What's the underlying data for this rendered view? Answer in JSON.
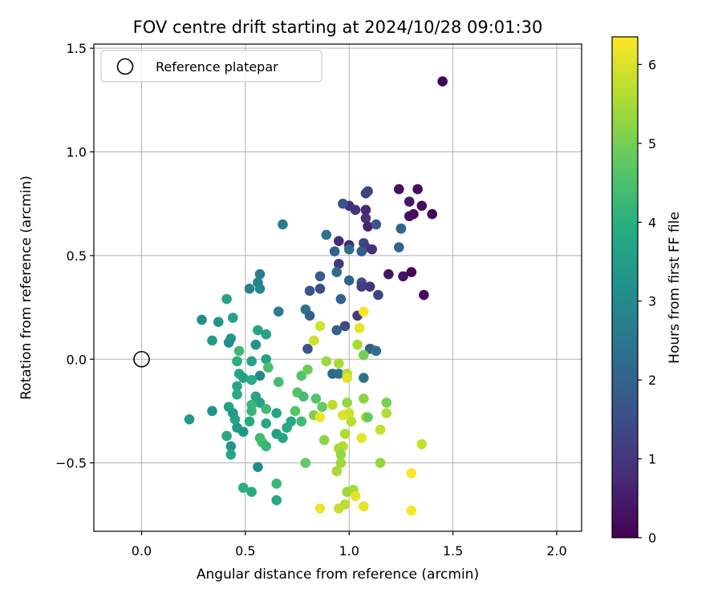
{
  "chart_data": {
    "type": "scatter",
    "title": "FOV centre drift starting at 2024/10/28 09:01:30",
    "xlabel": "Angular distance from reference (arcmin)",
    "ylabel": "Rotation from reference (arcmin)",
    "colorbar_label": "Hours from first FF file",
    "xlim": [
      -0.23,
      2.12
    ],
    "ylim": [
      -0.83,
      1.52
    ],
    "color_range": [
      0,
      6.35
    ],
    "x_ticks": [
      "0.0",
      "0.5",
      "1.0",
      "1.5",
      "2.0"
    ],
    "y_ticks": [
      "−0.5",
      "0.0",
      "0.5",
      "1.0",
      "1.5"
    ],
    "colorbar_ticks": [
      "0",
      "1",
      "2",
      "3",
      "4",
      "5",
      "6"
    ],
    "grid": true,
    "colormap": "viridis",
    "legend": {
      "placement": "top-left",
      "entries": [
        {
          "label": "Reference platepar",
          "marker": "open-circle"
        }
      ]
    },
    "reference_point": {
      "x": 0.0,
      "y": 0.0
    },
    "points": [
      {
        "x": 1.45,
        "y": 1.34,
        "c": 0.1
      },
      {
        "x": 1.24,
        "y": 0.82,
        "c": 0.3
      },
      {
        "x": 1.33,
        "y": 0.82,
        "c": 0.2
      },
      {
        "x": 1.29,
        "y": 0.76,
        "c": 0.4
      },
      {
        "x": 1.35,
        "y": 0.74,
        "c": 0.2
      },
      {
        "x": 1.29,
        "y": 0.69,
        "c": 0.3
      },
      {
        "x": 1.31,
        "y": 0.7,
        "c": 0.2
      },
      {
        "x": 1.4,
        "y": 0.7,
        "c": 0.1
      },
      {
        "x": 1.25,
        "y": 0.63,
        "c": 0.5
      },
      {
        "x": 1.26,
        "y": 0.4,
        "c": 0.3
      },
      {
        "x": 1.3,
        "y": 0.42,
        "c": 0.1
      },
      {
        "x": 1.36,
        "y": 0.31,
        "c": 0.2
      },
      {
        "x": 1.19,
        "y": 0.41,
        "c": 0.4
      },
      {
        "x": 1.08,
        "y": 0.8,
        "c": 1.2
      },
      {
        "x": 1.09,
        "y": 0.81,
        "c": 1.3
      },
      {
        "x": 1.0,
        "y": 0.74,
        "c": 0.8
      },
      {
        "x": 1.03,
        "y": 0.72,
        "c": 1.0
      },
      {
        "x": 1.08,
        "y": 0.72,
        "c": 0.7
      },
      {
        "x": 1.08,
        "y": 0.68,
        "c": 0.9
      },
      {
        "x": 1.09,
        "y": 0.64,
        "c": 0.6
      },
      {
        "x": 0.97,
        "y": 0.75,
        "c": 1.6
      },
      {
        "x": 1.13,
        "y": 0.65,
        "c": 1.7
      },
      {
        "x": 1.25,
        "y": 0.63,
        "c": 2.1
      },
      {
        "x": 1.24,
        "y": 0.54,
        "c": 2.0
      },
      {
        "x": 0.95,
        "y": 0.57,
        "c": 0.8
      },
      {
        "x": 1.0,
        "y": 0.55,
        "c": 0.7
      },
      {
        "x": 1.07,
        "y": 0.56,
        "c": 1.4
      },
      {
        "x": 1.08,
        "y": 0.54,
        "c": 1.2
      },
      {
        "x": 1.11,
        "y": 0.53,
        "c": 0.9
      },
      {
        "x": 1.06,
        "y": 0.52,
        "c": 1.8
      },
      {
        "x": 0.93,
        "y": 0.52,
        "c": 1.9
      },
      {
        "x": 1.0,
        "y": 0.53,
        "c": 2.2
      },
      {
        "x": 0.89,
        "y": 0.6,
        "c": 2.4
      },
      {
        "x": 0.95,
        "y": 0.46,
        "c": 1.0
      },
      {
        "x": 0.94,
        "y": 0.42,
        "c": 2.2
      },
      {
        "x": 0.86,
        "y": 0.4,
        "c": 1.8
      },
      {
        "x": 1.0,
        "y": 0.38,
        "c": 2.1
      },
      {
        "x": 1.06,
        "y": 0.37,
        "c": 1.5
      },
      {
        "x": 1.06,
        "y": 0.35,
        "c": 1.2
      },
      {
        "x": 1.1,
        "y": 0.35,
        "c": 1.0
      },
      {
        "x": 1.14,
        "y": 0.31,
        "c": 1.3
      },
      {
        "x": 0.81,
        "y": 0.33,
        "c": 1.6
      },
      {
        "x": 0.86,
        "y": 0.34,
        "c": 1.5
      },
      {
        "x": 0.96,
        "y": 0.29,
        "c": 2.0
      },
      {
        "x": 0.79,
        "y": 0.24,
        "c": 2.4
      },
      {
        "x": 0.81,
        "y": 0.21,
        "c": 2.0
      },
      {
        "x": 1.04,
        "y": 0.21,
        "c": 1.1
      },
      {
        "x": 0.98,
        "y": 0.16,
        "c": 1.4
      },
      {
        "x": 0.94,
        "y": 0.14,
        "c": 1.9
      },
      {
        "x": 0.8,
        "y": 0.05,
        "c": 1.7
      },
      {
        "x": 1.07,
        "y": 0.23,
        "c": 6.3
      },
      {
        "x": 1.05,
        "y": 0.15,
        "c": 6.1
      },
      {
        "x": 0.86,
        "y": 0.16,
        "c": 5.9
      },
      {
        "x": 0.83,
        "y": 0.09,
        "c": 5.9
      },
      {
        "x": 1.04,
        "y": 0.07,
        "c": 5.5
      },
      {
        "x": 1.11,
        "y": 0.05,
        "c": 6.1
      },
      {
        "x": 1.1,
        "y": 0.05,
        "c": 1.9
      },
      {
        "x": 1.13,
        "y": 0.04,
        "c": 2.3
      },
      {
        "x": 1.07,
        "y": 0.02,
        "c": 5.0
      },
      {
        "x": 0.68,
        "y": 0.65,
        "c": 2.6
      },
      {
        "x": 0.57,
        "y": 0.41,
        "c": 2.6
      },
      {
        "x": 0.56,
        "y": 0.37,
        "c": 2.8
      },
      {
        "x": 0.57,
        "y": 0.34,
        "c": 2.9
      },
      {
        "x": 0.52,
        "y": 0.34,
        "c": 2.8
      },
      {
        "x": 0.66,
        "y": 0.23,
        "c": 2.7
      },
      {
        "x": 0.41,
        "y": 0.29,
        "c": 3.7
      },
      {
        "x": 0.29,
        "y": 0.19,
        "c": 3.1
      },
      {
        "x": 0.37,
        "y": 0.18,
        "c": 3.3
      },
      {
        "x": 0.44,
        "y": 0.2,
        "c": 3.6
      },
      {
        "x": 0.56,
        "y": 0.14,
        "c": 3.7
      },
      {
        "x": 0.6,
        "y": 0.12,
        "c": 3.6
      },
      {
        "x": 0.43,
        "y": 0.1,
        "c": 3.4
      },
      {
        "x": 0.42,
        "y": 0.08,
        "c": 3.1
      },
      {
        "x": 0.34,
        "y": 0.09,
        "c": 3.4
      },
      {
        "x": 0.55,
        "y": 0.07,
        "c": 3.2
      },
      {
        "x": 0.47,
        "y": 0.04,
        "c": 4.3
      },
      {
        "x": 0.46,
        "y": -0.01,
        "c": 4.0
      },
      {
        "x": 0.53,
        "y": -0.01,
        "c": 3.6
      },
      {
        "x": 0.6,
        "y": 0.0,
        "c": 3.7
      },
      {
        "x": 0.61,
        "y": -0.04,
        "c": 4.4
      },
      {
        "x": 0.47,
        "y": -0.07,
        "c": 3.8
      },
      {
        "x": 0.49,
        "y": -0.09,
        "c": 3.6
      },
      {
        "x": 0.57,
        "y": -0.08,
        "c": 3.0
      },
      {
        "x": 0.53,
        "y": -0.1,
        "c": 3.9
      },
      {
        "x": 0.46,
        "y": -0.13,
        "c": 3.7
      },
      {
        "x": 0.46,
        "y": -0.17,
        "c": 3.9
      },
      {
        "x": 0.55,
        "y": -0.18,
        "c": 3.7
      },
      {
        "x": 0.57,
        "y": -0.21,
        "c": 3.6
      },
      {
        "x": 0.53,
        "y": -0.22,
        "c": 4.2
      },
      {
        "x": 0.42,
        "y": -0.23,
        "c": 3.6
      },
      {
        "x": 0.44,
        "y": -0.26,
        "c": 3.4
      },
      {
        "x": 0.53,
        "y": -0.25,
        "c": 4.2
      },
      {
        "x": 0.6,
        "y": -0.24,
        "c": 4.3
      },
      {
        "x": 0.65,
        "y": -0.26,
        "c": 3.7
      },
      {
        "x": 0.45,
        "y": -0.29,
        "c": 3.6
      },
      {
        "x": 0.52,
        "y": -0.3,
        "c": 3.9
      },
      {
        "x": 0.6,
        "y": -0.31,
        "c": 3.8
      },
      {
        "x": 0.46,
        "y": -0.33,
        "c": 3.4
      },
      {
        "x": 0.49,
        "y": -0.35,
        "c": 3.3
      },
      {
        "x": 0.23,
        "y": -0.29,
        "c": 3.4
      },
      {
        "x": 0.34,
        "y": -0.25,
        "c": 3.2
      },
      {
        "x": 0.41,
        "y": -0.37,
        "c": 3.8
      },
      {
        "x": 0.57,
        "y": -0.38,
        "c": 4.3
      },
      {
        "x": 0.58,
        "y": -0.4,
        "c": 4.4
      },
      {
        "x": 0.6,
        "y": -0.42,
        "c": 4.2
      },
      {
        "x": 0.65,
        "y": -0.36,
        "c": 3.5
      },
      {
        "x": 0.68,
        "y": -0.38,
        "c": 3.7
      },
      {
        "x": 0.7,
        "y": -0.33,
        "c": 3.9
      },
      {
        "x": 0.72,
        "y": -0.3,
        "c": 3.8
      },
      {
        "x": 0.74,
        "y": -0.25,
        "c": 4.6
      },
      {
        "x": 0.77,
        "y": -0.3,
        "c": 4.3
      },
      {
        "x": 0.43,
        "y": -0.42,
        "c": 3.3
      },
      {
        "x": 0.43,
        "y": -0.46,
        "c": 3.7
      },
      {
        "x": 0.56,
        "y": -0.52,
        "c": 3.1
      },
      {
        "x": 0.49,
        "y": -0.62,
        "c": 4.0
      },
      {
        "x": 0.53,
        "y": -0.64,
        "c": 3.9
      },
      {
        "x": 0.65,
        "y": -0.6,
        "c": 4.2
      },
      {
        "x": 0.65,
        "y": -0.68,
        "c": 3.8
      },
      {
        "x": 0.75,
        "y": -0.16,
        "c": 4.6
      },
      {
        "x": 0.78,
        "y": -0.18,
        "c": 4.4
      },
      {
        "x": 0.77,
        "y": -0.08,
        "c": 4.6
      },
      {
        "x": 0.8,
        "y": -0.05,
        "c": 4.9
      },
      {
        "x": 0.66,
        "y": -0.11,
        "c": 4.4
      },
      {
        "x": 0.84,
        "y": -0.19,
        "c": 4.6
      },
      {
        "x": 0.87,
        "y": -0.23,
        "c": 4.8
      },
      {
        "x": 0.83,
        "y": -0.27,
        "c": 5.1
      },
      {
        "x": 0.86,
        "y": -0.28,
        "c": 6.2
      },
      {
        "x": 0.92,
        "y": -0.07,
        "c": 2.1
      },
      {
        "x": 0.95,
        "y": -0.07,
        "c": 2.3
      },
      {
        "x": 0.99,
        "y": -0.07,
        "c": 5.6
      },
      {
        "x": 0.99,
        "y": -0.09,
        "c": 6.0
      },
      {
        "x": 0.89,
        "y": -0.01,
        "c": 5.4
      },
      {
        "x": 0.95,
        "y": -0.02,
        "c": 5.5
      },
      {
        "x": 1.07,
        "y": -0.09,
        "c": 2.4
      },
      {
        "x": 0.92,
        "y": -0.22,
        "c": 5.7
      },
      {
        "x": 0.99,
        "y": -0.21,
        "c": 5.3
      },
      {
        "x": 1.07,
        "y": -0.19,
        "c": 5.2
      },
      {
        "x": 0.97,
        "y": -0.27,
        "c": 6.0
      },
      {
        "x": 1.0,
        "y": -0.26,
        "c": 5.9
      },
      {
        "x": 1.01,
        "y": -0.3,
        "c": 5.7
      },
      {
        "x": 1.08,
        "y": -0.28,
        "c": 5.8
      },
      {
        "x": 1.09,
        "y": -0.28,
        "c": 4.8
      },
      {
        "x": 1.18,
        "y": -0.21,
        "c": 5.0
      },
      {
        "x": 1.18,
        "y": -0.26,
        "c": 5.6
      },
      {
        "x": 1.15,
        "y": -0.34,
        "c": 5.8
      },
      {
        "x": 1.06,
        "y": -0.38,
        "c": 6.1
      },
      {
        "x": 0.98,
        "y": -0.36,
        "c": 5.6
      },
      {
        "x": 0.88,
        "y": -0.39,
        "c": 5.2
      },
      {
        "x": 0.97,
        "y": -0.42,
        "c": 5.7
      },
      {
        "x": 0.95,
        "y": -0.43,
        "c": 5.5
      },
      {
        "x": 0.96,
        "y": -0.46,
        "c": 5.3
      },
      {
        "x": 0.96,
        "y": -0.5,
        "c": 5.4
      },
      {
        "x": 0.94,
        "y": -0.54,
        "c": 5.5
      },
      {
        "x": 0.79,
        "y": -0.5,
        "c": 4.8
      },
      {
        "x": 1.15,
        "y": -0.5,
        "c": 5.3
      },
      {
        "x": 1.35,
        "y": -0.41,
        "c": 5.8
      },
      {
        "x": 1.3,
        "y": -0.55,
        "c": 6.3
      },
      {
        "x": 0.99,
        "y": -0.64,
        "c": 5.4
      },
      {
        "x": 1.02,
        "y": -0.63,
        "c": 5.5
      },
      {
        "x": 1.03,
        "y": -0.66,
        "c": 6.1
      },
      {
        "x": 0.98,
        "y": -0.7,
        "c": 5.7
      },
      {
        "x": 0.95,
        "y": -0.72,
        "c": 5.8
      },
      {
        "x": 0.86,
        "y": -0.72,
        "c": 6.2
      },
      {
        "x": 1.07,
        "y": -0.71,
        "c": 6.1
      },
      {
        "x": 1.3,
        "y": -0.73,
        "c": 6.3
      }
    ]
  }
}
